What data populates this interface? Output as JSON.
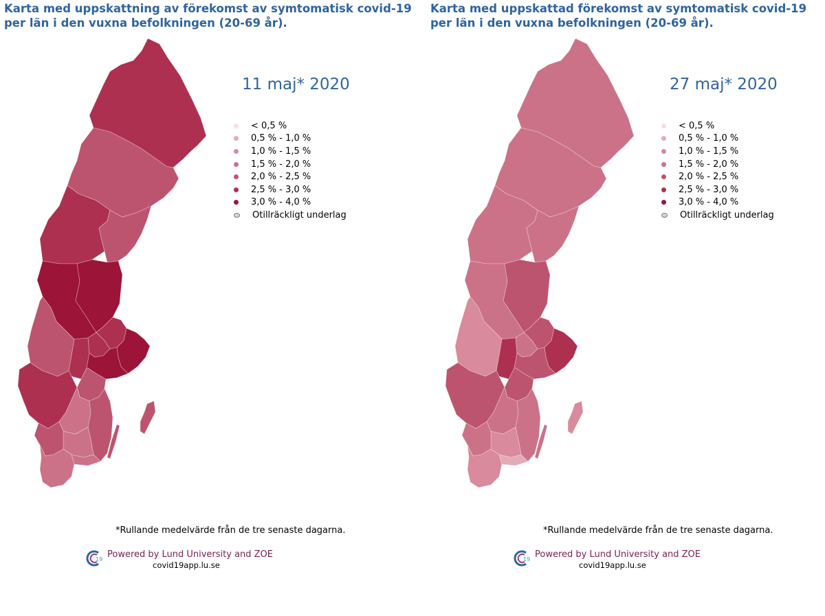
{
  "colors": {
    "title": "#2f64a0",
    "powered": "#7a1e52",
    "bins": [
      "#f6dde3",
      "#e5aab8",
      "#d98a9c",
      "#cb7289",
      "#bd546f",
      "#ad3050",
      "#9c1438"
    ],
    "na": "#d6d6d6"
  },
  "legend": {
    "items": [
      "< 0,5 %",
      "0,5 % - 1,0 %",
      "1,0 % - 1,5 %",
      "1,5 % - 2,0 %",
      "2,0 % - 2,5 %",
      "2,5 % - 3,0 %",
      "3,0 % - 4,0 %"
    ],
    "na_label": "Otillräckligt underlag"
  },
  "left": {
    "title": "Karta med uppskattning av förekomst av symtomatisk covid-19 per län i den vuxna befolkningen (20-69 år).",
    "date": "11 maj* 2020",
    "regions": {
      "norrbotten": "2,5 % - 3,0 %",
      "vasterbotten": "2,0 % - 2,5 %",
      "jamtland": "2,5 % - 3,0 %",
      "vasternorrland": "2,0 % - 2,5 %",
      "dalarna": "3,0 % - 4,0 %",
      "gavleborg": "3,0 % - 4,0 %",
      "varmland": "2,0 % - 2,5 %",
      "orebro": "2,5 % - 3,0 %",
      "vastmanland": "2,5 % - 3,0 %",
      "uppsala": "2,5 % - 3,0 %",
      "stockholm": "3,0 % - 4,0 %",
      "sodermanland": "3,0 % - 4,0 %",
      "vastra_gotaland": "2,5 % - 3,0 %",
      "ostergotland": "2,0 % - 2,5 %",
      "jonkoping": "1,5 % - 2,0 %",
      "kalmar": "2,0 % - 2,5 %",
      "kronoberg": "1,5 % - 2,0 %",
      "halland": "2,0 % - 2,5 %",
      "blekinge": "1,5 % - 2,0 %",
      "skane": "1,5 % - 2,0 %",
      "gotland": "2,0 % - 2,5 %",
      "oland": "2,0 % - 2,5 %"
    }
  },
  "right": {
    "title": "Karta med uppskattad förekomst av symtomatisk covid-19 per län i den vuxna befolkningen (20-69 år).",
    "date": "27 maj* 2020",
    "regions": {
      "norrbotten": "1,5 % - 2,0 %",
      "vasterbotten": "1,5 % - 2,0 %",
      "jamtland": "1,5 % - 2,0 %",
      "vasternorrland": "1,5 % - 2,0 %",
      "dalarna": "1,5 % - 2,0 %",
      "gavleborg": "2,0 % - 2,5 %",
      "varmland": "1,0 % - 1,5 %",
      "orebro": "2,5 % - 3,0 %",
      "vastmanland": "1,5 % - 2,0 %",
      "uppsala": "2,0 % - 2,5 %",
      "stockholm": "2,5 % - 3,0 %",
      "sodermanland": "2,0 % - 2,5 %",
      "vastra_gotaland": "2,0 % - 2,5 %",
      "ostergotland": "2,0 % - 2,5 %",
      "jonkoping": "1,5 % - 2,0 %",
      "kalmar": "1,5 % - 2,0 %",
      "kronoberg": "1,0 % - 1,5 %",
      "halland": "1,5 % - 2,0 %",
      "blekinge": "0,5 % - 1,0 %",
      "skane": "1,0 % - 1,5 %",
      "gotland": "1,0 % - 1,5 %",
      "oland": "1,5 % - 2,0 %"
    }
  },
  "footnote": "*Rullande medelvärde från de tre senaste dagarna.",
  "powered_by": "Powered by Lund University and ZOE",
  "url": "covid19app.lu.se",
  "logo_text": "19"
}
